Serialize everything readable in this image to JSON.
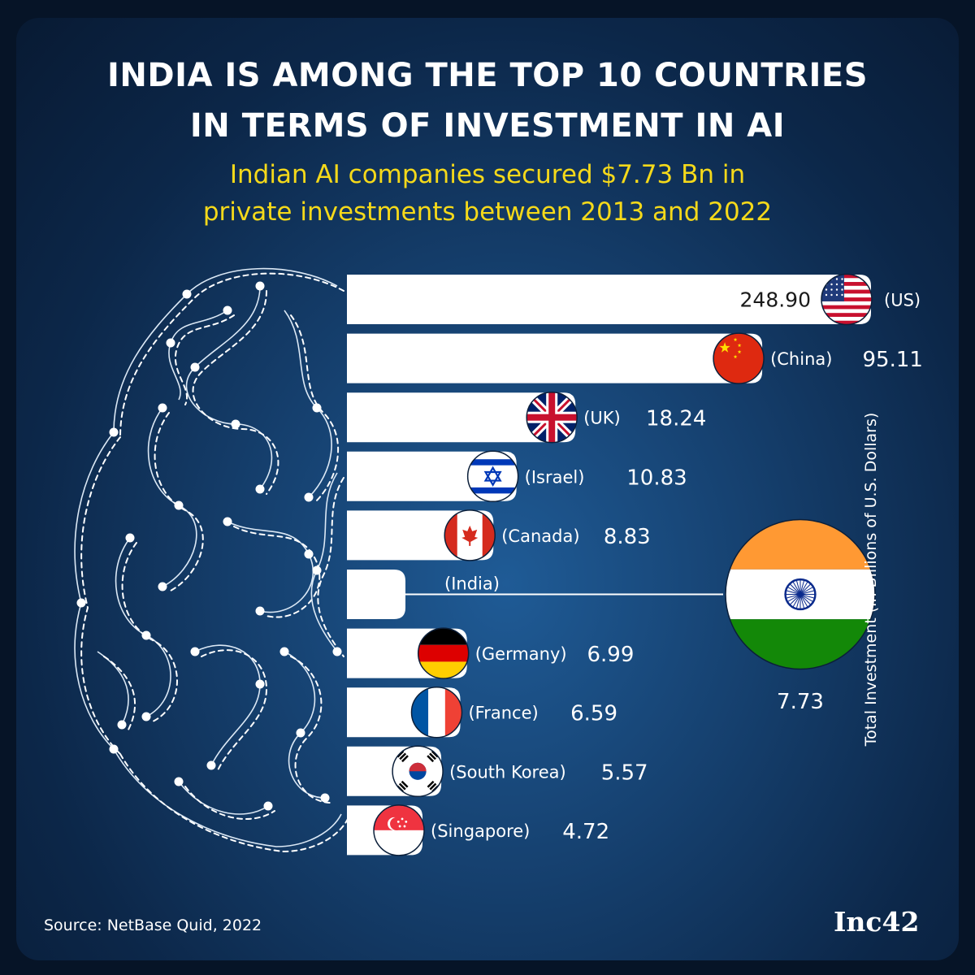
{
  "title_line1": "INDIA IS AMONG THE TOP 10 COUNTRIES",
  "title_line2": "IN TERMS OF INVESTMENT IN AI",
  "subtitle_line1": "Indian AI companies secured $7.73 Bn in",
  "subtitle_line2": "private investments between 2013 and 2022",
  "source": "Source: NetBase Quid, 2022",
  "logo": "Inc42",
  "colors": {
    "accent": "#f5d91a",
    "bar": "#ffffff",
    "text": "#ffffff",
    "bg": "#153f6d"
  },
  "chart_data": {
    "type": "bar",
    "orientation": "horizontal",
    "ylabel": "Total Investment (in Billions of U.S. Dollars)",
    "categories": [
      "(US)",
      "(China)",
      "(UK)",
      "(Israel)",
      "(Canada)",
      "(India)",
      "(Germany)",
      "(France)",
      "(South Korea)",
      "(Singapore)"
    ],
    "values": [
      248.9,
      95.11,
      18.24,
      10.83,
      8.83,
      7.73,
      6.99,
      6.59,
      5.57,
      4.72
    ],
    "value_labels": [
      "248.90",
      "95.11",
      "18.24",
      "10.83",
      "8.83",
      "7.73",
      "6.99",
      "6.59",
      "5.57",
      "4.72"
    ],
    "flags": [
      "us-flag-icon",
      "china-flag-icon",
      "uk-flag-icon",
      "israel-flag-icon",
      "canada-flag-icon",
      "india-flag-icon",
      "germany-flag-icon",
      "france-flag-icon",
      "south-korea-flag-icon",
      "singapore-flag-icon"
    ],
    "highlight": "(India)"
  }
}
